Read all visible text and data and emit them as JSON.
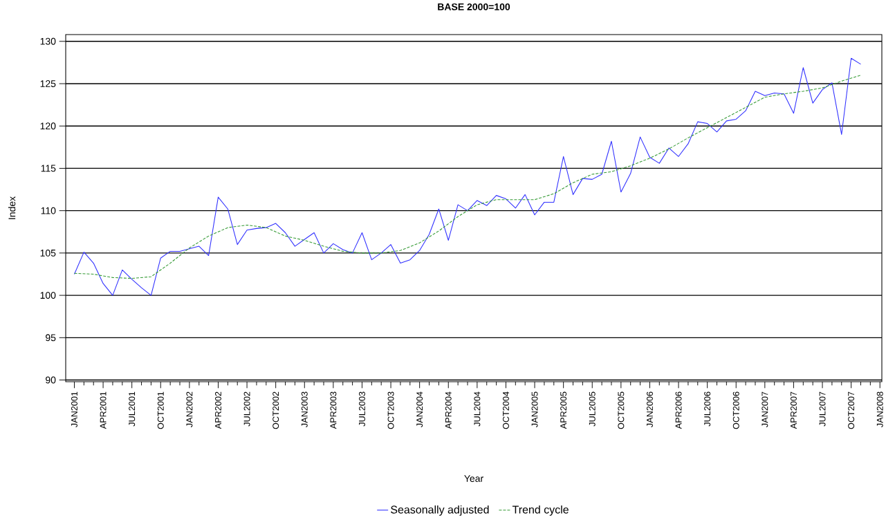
{
  "chart_data": {
    "type": "line",
    "title": "BASE 2000=100",
    "xlabel": "Year",
    "ylabel": "Index",
    "x": [
      "2001-01",
      "2001-02",
      "2001-03",
      "2001-04",
      "2001-05",
      "2001-06",
      "2001-07",
      "2001-08",
      "2001-09",
      "2001-10",
      "2001-11",
      "2001-12",
      "2002-01",
      "2002-02",
      "2002-03",
      "2002-04",
      "2002-05",
      "2002-06",
      "2002-07",
      "2002-08",
      "2002-09",
      "2002-10",
      "2002-11",
      "2002-12",
      "2003-01",
      "2003-02",
      "2003-03",
      "2003-04",
      "2003-05",
      "2003-06",
      "2003-07",
      "2003-08",
      "2003-09",
      "2003-10",
      "2003-11",
      "2003-12",
      "2004-01",
      "2004-02",
      "2004-03",
      "2004-04",
      "2004-05",
      "2004-06",
      "2004-07",
      "2004-08",
      "2004-09",
      "2004-10",
      "2004-11",
      "2004-12",
      "2005-01",
      "2005-02",
      "2005-03",
      "2005-04",
      "2005-05",
      "2005-06",
      "2005-07",
      "2005-08",
      "2005-09",
      "2005-10",
      "2005-11",
      "2005-12",
      "2006-01",
      "2006-02",
      "2006-03",
      "2006-04",
      "2006-05",
      "2006-06",
      "2006-07",
      "2006-08",
      "2006-09",
      "2006-10",
      "2006-11",
      "2006-12",
      "2007-01",
      "2007-02",
      "2007-03",
      "2007-04",
      "2007-05",
      "2007-06",
      "2007-07",
      "2007-08",
      "2007-09",
      "2007-10",
      "2007-11"
    ],
    "series": [
      {
        "name": "Seasonally adjusted",
        "color": "#3030ff",
        "line_style": "solid",
        "values": [
          102.5,
          105.1,
          103.8,
          101.4,
          100.0,
          103.0,
          101.9,
          100.9,
          100.0,
          104.4,
          105.2,
          105.2,
          105.5,
          105.8,
          104.7,
          111.6,
          110.2,
          106.0,
          107.7,
          107.9,
          108.0,
          108.5,
          107.4,
          105.8,
          106.6,
          107.4,
          105.0,
          106.1,
          105.4,
          105.0,
          107.4,
          104.2,
          105.0,
          106.0,
          103.8,
          104.2,
          105.3,
          107.2,
          110.2,
          106.5,
          110.7,
          110.0,
          111.2,
          110.6,
          111.8,
          111.4,
          110.3,
          111.9,
          109.5,
          111.0,
          111.0,
          116.4,
          111.9,
          113.8,
          113.7,
          114.3,
          118.2,
          112.2,
          114.4,
          118.7,
          116.3,
          115.6,
          117.4,
          116.4,
          117.9,
          120.5,
          120.3,
          119.3,
          120.6,
          120.8,
          121.8,
          124.1,
          123.6,
          123.9,
          123.8,
          121.5,
          126.9,
          122.7,
          124.3,
          125.1,
          119.0,
          128.0,
          127.3
        ]
      },
      {
        "name": "Trend cycle",
        "color": "#339933",
        "line_style": "dashed",
        "x": [
          "2001-01",
          "2001-03",
          "2001-05",
          "2001-07",
          "2001-09",
          "2001-11",
          "2002-01",
          "2002-03",
          "2002-05",
          "2002-07",
          "2002-09",
          "2002-11",
          "2003-01",
          "2003-03",
          "2003-05",
          "2003-07",
          "2003-09",
          "2003-11",
          "2004-01",
          "2004-03",
          "2004-05",
          "2004-07",
          "2004-09",
          "2004-11",
          "2005-01",
          "2005-03",
          "2005-05",
          "2005-07",
          "2005-09",
          "2005-11",
          "2006-01",
          "2006-03",
          "2006-05",
          "2006-07",
          "2006-09",
          "2006-11",
          "2007-01",
          "2007-03",
          "2007-05",
          "2007-07",
          "2007-09",
          "2007-11"
        ],
        "values": [
          102.6,
          102.5,
          102.1,
          102.0,
          102.2,
          103.8,
          105.6,
          107.0,
          108.0,
          108.3,
          108.0,
          107.0,
          106.5,
          105.8,
          105.2,
          105.0,
          105.0,
          105.3,
          106.2,
          107.6,
          109.3,
          110.7,
          111.3,
          111.3,
          111.3,
          112.0,
          113.3,
          114.3,
          114.6,
          115.3,
          116.2,
          117.3,
          118.6,
          119.8,
          121.0,
          122.2,
          123.4,
          123.8,
          124.1,
          124.5,
          125.3,
          126.0
        ]
      }
    ],
    "xlim": [
      "2000-12-04",
      "2008-01-07"
    ],
    "xticks": [
      {
        "value": "2001-01",
        "label": "JAN2001"
      },
      {
        "value": "2001-02",
        "label": null
      },
      {
        "value": "2001-03",
        "label": null
      },
      {
        "value": "2001-04",
        "label": "APR2001"
      },
      {
        "value": "2001-05",
        "label": null
      },
      {
        "value": "2001-06",
        "label": null
      },
      {
        "value": "2001-07",
        "label": "JUL2001"
      },
      {
        "value": "2001-08",
        "label": null
      },
      {
        "value": "2001-09",
        "label": null
      },
      {
        "value": "2001-10",
        "label": "OCT2001"
      },
      {
        "value": "2001-11",
        "label": null
      },
      {
        "value": "2001-12",
        "label": null
      },
      {
        "value": "2002-01",
        "label": "JAN2002"
      },
      {
        "value": "2002-02",
        "label": null
      },
      {
        "value": "2002-03",
        "label": null
      },
      {
        "value": "2002-04",
        "label": "APR2002"
      },
      {
        "value": "2002-05",
        "label": null
      },
      {
        "value": "2002-06",
        "label": null
      },
      {
        "value": "2002-07",
        "label": "JUL2002"
      },
      {
        "value": "2002-08",
        "label": null
      },
      {
        "value": "2002-09",
        "label": null
      },
      {
        "value": "2002-10",
        "label": "OCT2002"
      },
      {
        "value": "2002-11",
        "label": null
      },
      {
        "value": "2002-12",
        "label": null
      },
      {
        "value": "2003-01",
        "label": "JAN2003"
      },
      {
        "value": "2003-02",
        "label": null
      },
      {
        "value": "2003-03",
        "label": null
      },
      {
        "value": "2003-04",
        "label": "APR2003"
      },
      {
        "value": "2003-05",
        "label": null
      },
      {
        "value": "2003-06",
        "label": null
      },
      {
        "value": "2003-07",
        "label": "JUL2003"
      },
      {
        "value": "2003-08",
        "label": null
      },
      {
        "value": "2003-09",
        "label": null
      },
      {
        "value": "2003-10",
        "label": "OCT2003"
      },
      {
        "value": "2003-11",
        "label": null
      },
      {
        "value": "2003-12",
        "label": null
      },
      {
        "value": "2004-01",
        "label": "JAN2004"
      },
      {
        "value": "2004-02",
        "label": null
      },
      {
        "value": "2004-03",
        "label": null
      },
      {
        "value": "2004-04",
        "label": "APR2004"
      },
      {
        "value": "2004-05",
        "label": null
      },
      {
        "value": "2004-06",
        "label": null
      },
      {
        "value": "2004-07",
        "label": "JUL2004"
      },
      {
        "value": "2004-08",
        "label": null
      },
      {
        "value": "2004-09",
        "label": null
      },
      {
        "value": "2004-10",
        "label": "OCT2004"
      },
      {
        "value": "2004-11",
        "label": null
      },
      {
        "value": "2004-12",
        "label": null
      },
      {
        "value": "2005-01",
        "label": "JAN2005"
      },
      {
        "value": "2005-02",
        "label": null
      },
      {
        "value": "2005-03",
        "label": null
      },
      {
        "value": "2005-04",
        "label": "APR2005"
      },
      {
        "value": "2005-05",
        "label": null
      },
      {
        "value": "2005-06",
        "label": null
      },
      {
        "value": "2005-07",
        "label": "JUL2005"
      },
      {
        "value": "2005-08",
        "label": null
      },
      {
        "value": "2005-09",
        "label": null
      },
      {
        "value": "2005-10",
        "label": "OCT2005"
      },
      {
        "value": "2005-11",
        "label": null
      },
      {
        "value": "2005-12",
        "label": null
      },
      {
        "value": "2006-01",
        "label": "JAN2006"
      },
      {
        "value": "2006-02",
        "label": null
      },
      {
        "value": "2006-03",
        "label": null
      },
      {
        "value": "2006-04",
        "label": "APR2006"
      },
      {
        "value": "2006-05",
        "label": null
      },
      {
        "value": "2006-06",
        "label": null
      },
      {
        "value": "2006-07",
        "label": "JUL2006"
      },
      {
        "value": "2006-08",
        "label": null
      },
      {
        "value": "2006-09",
        "label": null
      },
      {
        "value": "2006-10",
        "label": "OCT2006"
      },
      {
        "value": "2006-11",
        "label": null
      },
      {
        "value": "2006-12",
        "label": null
      },
      {
        "value": "2007-01",
        "label": "JAN2007"
      },
      {
        "value": "2007-02",
        "label": null
      },
      {
        "value": "2007-03",
        "label": null
      },
      {
        "value": "2007-04",
        "label": "APR2007"
      },
      {
        "value": "2007-05",
        "label": null
      },
      {
        "value": "2007-06",
        "label": null
      },
      {
        "value": "2007-07",
        "label": "JUL2007"
      },
      {
        "value": "2007-08",
        "label": null
      },
      {
        "value": "2007-09",
        "label": null
      },
      {
        "value": "2007-10",
        "label": "OCT2007"
      },
      {
        "value": "2007-11",
        "label": null
      },
      {
        "value": "2007-12",
        "label": null
      },
      {
        "value": "2008-01",
        "label": "JAN2008"
      }
    ],
    "ylim": [
      89.8,
      130.8
    ],
    "yticks": [
      90,
      95,
      100,
      105,
      110,
      115,
      120,
      125,
      130
    ],
    "grid": "y",
    "legend": "bottom",
    "marker": "none"
  }
}
